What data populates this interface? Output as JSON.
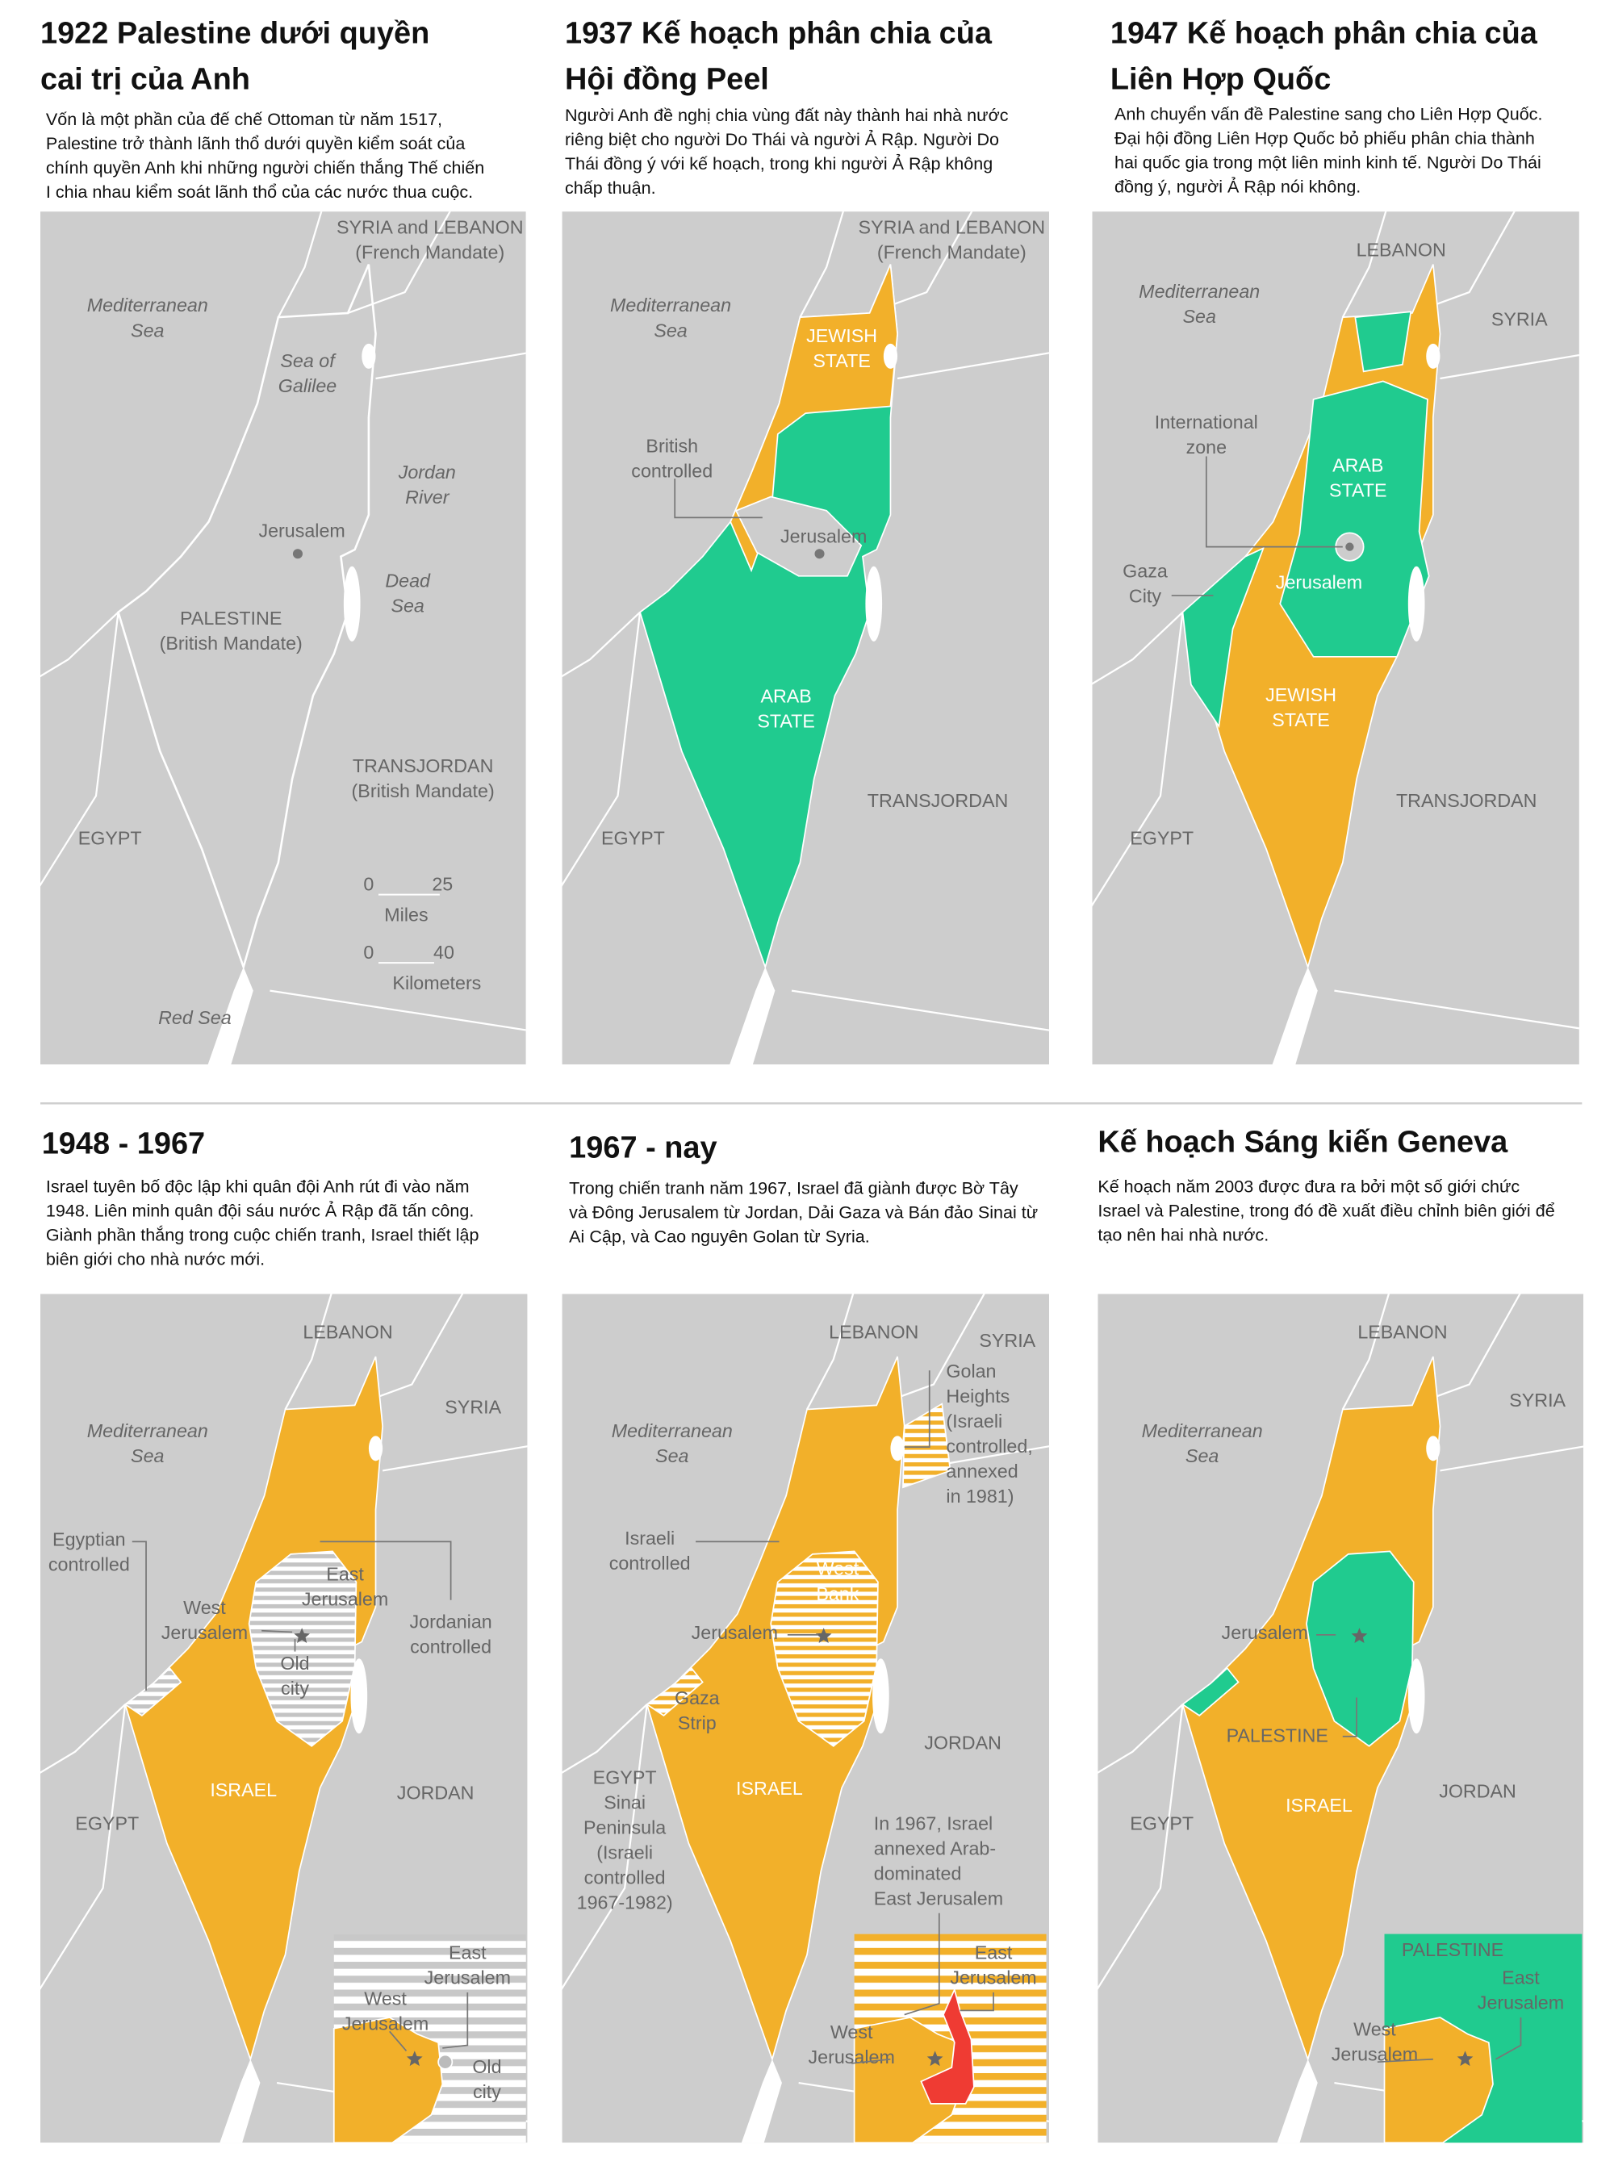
{
  "panels": [
    {
      "title": [
        "1922 Palestine dưới quyền",
        "cai trị của Anh"
      ],
      "description": [
        "Vốn là một phần của đế chế Ottoman từ năm 1517,",
        "Palestine trở thành lãnh thổ dưới quyền kiểm soát của",
        "chính quyền Anh khi những người chiến thắng Thế chiến",
        "I chia nhau kiểm soát lãnh thổ của các nước thua cuộc."
      ],
      "labels": [
        [
          "SYRIA and LEBANON",
          "(French Mandate)"
        ],
        [
          "Mediterranean",
          "Sea"
        ],
        [
          "Sea of",
          "Galilee"
        ],
        [
          "Jordan",
          "River"
        ],
        [
          "Jerusalem"
        ],
        [
          "Dead",
          "Sea"
        ],
        [
          "PALESTINE",
          "(British Mandate)"
        ],
        [
          "TRANSJORDAN",
          "(British Mandate)"
        ],
        [
          "EGYPT"
        ],
        [
          "Red Sea"
        ]
      ],
      "scale": {
        "miles": [
          0,
          25
        ],
        "miles_label": "Miles",
        "kilometers": [
          0,
          40
        ],
        "kilometers_label": "Kilometers"
      }
    },
    {
      "title": [
        "1937 Kế hoạch phân chia của",
        "Hội đồng Peel"
      ],
      "description": [
        "Người Anh đề nghị chia vùng đất này thành hai nhà nước",
        "riêng biệt cho người Do Thái và người Ả Rập. Người Do",
        "Thái đồng ý với kế hoạch, trong khi người Ả Rập không",
        "chấp thuận."
      ],
      "labels": [
        [
          "SYRIA and LEBANON",
          "(French Mandate)"
        ],
        [
          "Mediterranean",
          "Sea"
        ],
        [
          "JEWISH",
          "STATE"
        ],
        [
          "British",
          "controlled"
        ],
        [
          "Jerusalem"
        ],
        [
          "ARAB",
          "STATE"
        ],
        [
          "TRANSJORDAN"
        ],
        [
          "EGYPT"
        ]
      ]
    },
    {
      "title": [
        "1947 Kế hoạch phân chia của",
        "Liên Hợp Quốc"
      ],
      "description": [
        "Anh chuyển vấn đề Palestine sang cho Liên Hợp Quốc.",
        "Đại hội đồng Liên Hợp Quốc bỏ phiếu phân chia thành",
        "hai quốc gia trong một liên minh kinh tế. Người Do Thái",
        "đồng ý, người Ả Rập nói không."
      ],
      "labels": [
        [
          "LEBANON"
        ],
        [
          "SYRIA"
        ],
        [
          "Mediterranean",
          "Sea"
        ],
        [
          "International",
          "zone"
        ],
        [
          "ARAB",
          "STATE"
        ],
        [
          "Jerusalem"
        ],
        [
          "Gaza",
          "City"
        ],
        [
          "JEWISH",
          "STATE"
        ],
        [
          "TRANSJORDAN"
        ],
        [
          "EGYPT"
        ]
      ]
    },
    {
      "title": [
        "1948 - 1967"
      ],
      "description": [
        "Israel tuyên bố độc lập khi quân đội Anh rút đi vào năm",
        "1948. Liên minh quân đội sáu nước Ả Rập đã tấn công.",
        "Giành phần thắng trong cuộc chiến tranh, Israel thiết lập",
        "biên giới cho nhà nước mới."
      ],
      "labels": [
        [
          "LEBANON"
        ],
        [
          "SYRIA"
        ],
        [
          "Mediterranean",
          "Sea"
        ],
        [
          "Egyptian",
          "controlled"
        ],
        [
          "East",
          "Jerusalem"
        ],
        [
          "West",
          "Jerusalem"
        ],
        [
          "Jordanian",
          "controlled"
        ],
        [
          "Old",
          "city"
        ],
        [
          "ISRAEL"
        ],
        [
          "JORDAN"
        ],
        [
          "EGYPT"
        ],
        [
          "East",
          "Jerusalem"
        ],
        [
          "West",
          "Jerusalem"
        ],
        [
          "Old",
          "city"
        ]
      ]
    },
    {
      "title": [
        "1967 - nay"
      ],
      "description": [
        "Trong chiến tranh năm 1967, Israel đã giành được Bờ Tây",
        "và Đông Jerusalem từ Jordan, Dải Gaza và Bán đảo Sinai từ",
        "Ai Cập, và Cao nguyên Golan từ Syria."
      ],
      "labels": [
        [
          "LEBANON"
        ],
        [
          "SYRIA"
        ],
        [
          "Mediterranean",
          "Sea"
        ],
        [
          "Golan",
          "Heights",
          "(Israeli",
          "controlled,",
          "annexed",
          "in 1981)"
        ],
        [
          "Israeli",
          "controlled"
        ],
        [
          "West",
          "Bank"
        ],
        [
          "Jerusalem"
        ],
        [
          "Gaza",
          "Strip"
        ],
        [
          "JORDAN"
        ],
        [
          "ISRAEL"
        ],
        [
          "EGYPT",
          "Sinai",
          "Peninsula",
          "(Israeli",
          "controlled",
          "1967-1982)"
        ],
        [
          "In 1967, Israel",
          "annexed Arab-",
          "dominated",
          "East Jerusalem"
        ],
        [
          "East",
          "Jerusalem"
        ],
        [
          "West",
          "Jerusalem"
        ]
      ]
    },
    {
      "title": [
        "Kế hoạch Sáng kiến Geneva"
      ],
      "description": [
        "Kế hoạch năm 2003 được đưa ra bởi một số giới chức",
        "Israel và Palestine, trong đó đề xuất điều chỉnh biên giới để",
        "tạo nên hai nhà nước."
      ],
      "labels": [
        [
          "LEBANON"
        ],
        [
          "SYRIA"
        ],
        [
          "Mediterranean",
          "Sea"
        ],
        [
          "Jerusalem"
        ],
        [
          "PALESTINE"
        ],
        [
          "ISRAEL"
        ],
        [
          "JORDAN"
        ],
        [
          "EGYPT"
        ],
        [
          "PALESTINE"
        ],
        [
          "East",
          "Jerusalem"
        ],
        [
          "West",
          "Jerusalem"
        ]
      ]
    }
  ]
}
